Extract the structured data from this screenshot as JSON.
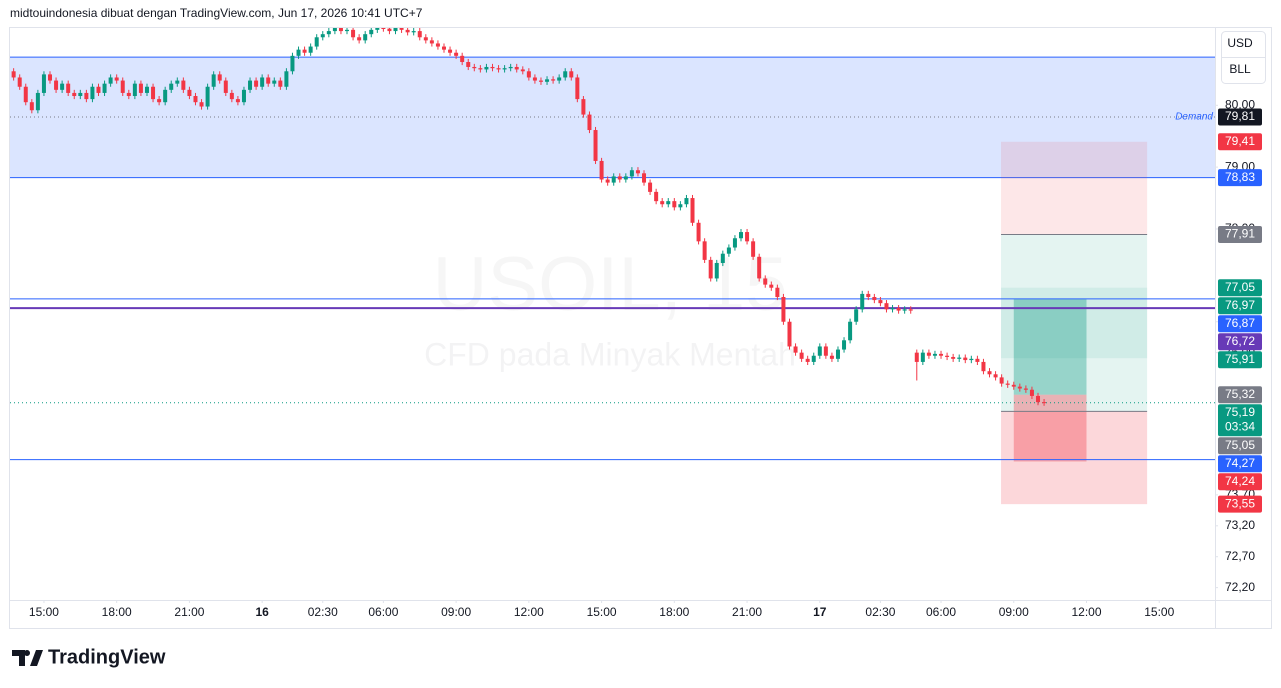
{
  "header": {
    "text": "midtouindonesia dibuat dengan TradingView.com, Jun 17, 2026 10:41 UTC+7"
  },
  "currency_buttons": [
    "USD",
    "BLL"
  ],
  "footer": {
    "brand": "TradingView"
  },
  "chart_data": {
    "type": "candlestick",
    "title": "USOIL, 15",
    "subtitle": "CFD pada Minyak Mentah",
    "up_color": "#089981",
    "down_color": "#f23645",
    "x": [
      -5,
      -4,
      -3,
      -2,
      -1,
      0,
      1,
      2,
      3,
      4,
      5,
      6,
      7,
      8,
      9,
      10,
      11,
      12,
      13,
      14,
      15,
      16,
      17,
      18,
      19,
      20,
      21,
      22,
      23,
      24,
      25,
      26,
      27,
      28,
      29,
      30,
      31,
      32,
      33,
      34,
      35,
      36,
      37,
      38,
      39,
      40,
      41,
      42,
      43,
      44,
      45,
      46,
      47,
      48,
      49,
      50,
      51,
      52,
      53,
      54,
      55,
      56,
      57,
      58,
      59,
      60,
      61,
      62,
      63,
      64,
      65,
      66,
      67,
      68,
      69,
      70,
      71,
      72,
      73,
      74,
      75,
      76,
      77,
      78,
      79,
      80,
      81,
      82,
      83,
      84,
      85,
      86,
      87,
      88,
      89,
      90,
      91,
      92,
      93,
      94,
      95,
      96,
      97,
      98,
      99,
      100,
      101,
      102,
      103,
      104,
      105,
      106,
      107,
      108,
      109,
      110,
      111,
      112,
      113,
      114,
      115,
      116,
      117,
      118,
      119,
      120,
      121,
      122,
      123,
      124,
      125,
      126,
      127,
      128,
      129,
      130,
      131,
      132,
      133,
      134,
      135,
      136,
      137,
      138,
      139,
      140,
      141,
      142,
      143,
      144,
      145,
      146,
      147,
      148,
      149,
      150,
      151,
      152,
      153,
      154,
      155,
      156,
      157,
      158,
      159,
      160,
      161,
      162,
      163,
      164,
      165
    ],
    "open": [
      80.55,
      80.45,
      80.3,
      80.05,
      79.92,
      80.2,
      80.5,
      80.4,
      80.25,
      80.35,
      80.2,
      80.15,
      80.2,
      80.1,
      80.3,
      80.2,
      80.35,
      80.45,
      80.4,
      80.2,
      80.15,
      80.35,
      80.2,
      80.3,
      80.1,
      80.05,
      80.25,
      80.35,
      80.4,
      80.25,
      80.15,
      80.05,
      79.98,
      80.3,
      80.5,
      80.4,
      80.2,
      80.1,
      80.05,
      80.25,
      80.4,
      80.3,
      80.45,
      80.35,
      80.4,
      80.3,
      80.55,
      80.8,
      80.9,
      80.85,
      80.95,
      81.1,
      81.15,
      81.2,
      81.25,
      81.2,
      81.22,
      81.1,
      81.05,
      81.15,
      81.22,
      81.25,
      81.24,
      81.2,
      81.25,
      81.22,
      81.18,
      81.2,
      81.1,
      81.05,
      81.0,
      80.95,
      80.9,
      80.85,
      80.8,
      80.7,
      80.62,
      80.6,
      80.58,
      80.62,
      80.6,
      80.58,
      80.6,
      80.62,
      80.58,
      80.55,
      80.45,
      80.4,
      80.38,
      80.42,
      80.4,
      80.45,
      80.55,
      80.45,
      80.1,
      79.85,
      79.6,
      79.1,
      78.8,
      78.75,
      78.85,
      78.8,
      78.85,
      78.95,
      78.9,
      78.75,
      78.6,
      78.45,
      78.4,
      78.45,
      78.35,
      78.4,
      78.5,
      78.1,
      77.8,
      77.5,
      77.2,
      77.45,
      77.6,
      77.7,
      77.85,
      77.95,
      77.8,
      77.55,
      77.2,
      77.1,
      77.05,
      76.9,
      76.5,
      76.1,
      76.0,
      75.9,
      75.85,
      75.95,
      76.1,
      75.95,
      75.9,
      76.05,
      76.2,
      76.5,
      76.7,
      76.95,
      76.9,
      76.85,
      76.8,
      76.7,
      76.72,
      76.68,
      76.7,
      76.0,
      75.85,
      76.0,
      75.95,
      75.98,
      75.95,
      75.93,
      75.9,
      75.92,
      75.88,
      75.9,
      75.85,
      75.7,
      75.65,
      75.6,
      75.5,
      75.48,
      75.45,
      75.42,
      75.4,
      75.3,
      75.2
    ],
    "high": [
      80.6,
      80.5,
      80.35,
      80.1,
      80.25,
      80.55,
      80.55,
      80.45,
      80.4,
      80.4,
      80.25,
      80.25,
      80.25,
      80.35,
      80.35,
      80.4,
      80.5,
      80.5,
      80.45,
      80.25,
      80.4,
      80.4,
      80.35,
      80.35,
      80.15,
      80.3,
      80.4,
      80.45,
      80.45,
      80.3,
      80.2,
      80.1,
      80.35,
      80.55,
      80.55,
      80.45,
      80.25,
      80.15,
      80.3,
      80.45,
      80.45,
      80.5,
      80.5,
      80.45,
      80.45,
      80.6,
      80.85,
      80.95,
      80.95,
      81.0,
      81.15,
      81.2,
      81.25,
      81.3,
      81.3,
      81.27,
      81.27,
      81.15,
      81.2,
      81.27,
      81.3,
      81.3,
      81.29,
      81.3,
      81.3,
      81.27,
      81.25,
      81.25,
      81.15,
      81.1,
      81.05,
      81.0,
      80.95,
      80.9,
      80.85,
      80.75,
      80.67,
      80.65,
      80.67,
      80.67,
      80.65,
      80.65,
      80.67,
      80.67,
      80.63,
      80.6,
      80.5,
      80.45,
      80.47,
      80.47,
      80.5,
      80.6,
      80.6,
      80.5,
      80.15,
      79.9,
      79.65,
      79.15,
      78.85,
      78.9,
      78.9,
      78.9,
      79.0,
      79.0,
      78.95,
      78.8,
      78.65,
      78.5,
      78.5,
      78.5,
      78.45,
      78.55,
      78.55,
      78.15,
      77.85,
      77.55,
      77.5,
      77.65,
      77.75,
      77.9,
      78.0,
      78.0,
      77.85,
      77.6,
      77.25,
      77.15,
      77.1,
      76.95,
      76.55,
      76.15,
      76.05,
      75.95,
      76.0,
      76.15,
      76.15,
      76.0,
      76.1,
      76.25,
      76.55,
      76.75,
      77.0,
      77.0,
      76.95,
      76.9,
      76.85,
      76.77,
      76.77,
      76.75,
      76.75,
      76.05,
      76.05,
      76.05,
      76.03,
      76.03,
      76.0,
      75.98,
      75.97,
      75.97,
      75.95,
      75.95,
      75.9,
      75.75,
      75.7,
      75.65,
      75.55,
      75.53,
      75.5,
      75.47,
      75.45,
      75.35,
      75.25
    ],
    "low": [
      80.4,
      80.25,
      80.0,
      79.87,
      79.87,
      80.15,
      80.35,
      80.2,
      80.2,
      80.15,
      80.1,
      80.1,
      80.05,
      80.05,
      80.15,
      80.15,
      80.3,
      80.35,
      80.15,
      80.1,
      80.1,
      80.15,
      80.15,
      80.05,
      80.0,
      80.0,
      80.2,
      80.3,
      80.2,
      80.1,
      80.0,
      79.93,
      79.93,
      80.25,
      80.35,
      80.15,
      80.05,
      80.0,
      80.0,
      80.2,
      80.25,
      80.25,
      80.3,
      80.3,
      80.25,
      80.25,
      80.5,
      80.75,
      80.8,
      80.8,
      80.9,
      81.05,
      81.1,
      81.15,
      81.15,
      81.15,
      81.05,
      81.0,
      81.0,
      81.1,
      81.17,
      81.19,
      81.15,
      81.15,
      81.17,
      81.13,
      81.13,
      81.05,
      81.0,
      80.95,
      80.9,
      80.85,
      80.8,
      80.75,
      80.65,
      80.57,
      80.55,
      80.53,
      80.53,
      80.55,
      80.53,
      80.53,
      80.55,
      80.53,
      80.5,
      80.4,
      80.35,
      80.33,
      80.33,
      80.35,
      80.35,
      80.4,
      80.4,
      80.05,
      79.8,
      79.55,
      79.05,
      78.75,
      78.7,
      78.7,
      78.75,
      78.75,
      78.8,
      78.85,
      78.7,
      78.55,
      78.4,
      78.35,
      78.35,
      78.3,
      78.3,
      78.35,
      78.05,
      77.75,
      77.45,
      77.15,
      77.15,
      77.4,
      77.55,
      77.65,
      77.8,
      77.75,
      77.5,
      77.15,
      77.05,
      77.0,
      76.85,
      76.45,
      76.05,
      75.95,
      75.85,
      75.8,
      75.8,
      75.9,
      75.9,
      75.85,
      75.85,
      76.0,
      76.15,
      76.45,
      76.65,
      76.85,
      76.8,
      76.75,
      76.65,
      76.65,
      76.63,
      76.63,
      76.63,
      75.55,
      75.8,
      75.9,
      75.9,
      75.9,
      75.88,
      75.85,
      75.85,
      75.83,
      75.83,
      75.8,
      75.65,
      75.6,
      75.55,
      75.45,
      75.43,
      75.4,
      75.37,
      75.35,
      75.25,
      75.15,
      75.14
    ],
    "close": [
      80.45,
      80.3,
      80.05,
      79.92,
      80.2,
      80.5,
      80.4,
      80.25,
      80.35,
      80.2,
      80.15,
      80.2,
      80.1,
      80.3,
      80.2,
      80.35,
      80.45,
      80.4,
      80.2,
      80.15,
      80.35,
      80.2,
      80.3,
      80.1,
      80.05,
      80.25,
      80.35,
      80.4,
      80.25,
      80.15,
      80.05,
      79.98,
      80.3,
      80.5,
      80.4,
      80.2,
      80.1,
      80.05,
      80.25,
      80.4,
      80.3,
      80.45,
      80.35,
      80.4,
      80.3,
      80.55,
      80.8,
      80.9,
      80.85,
      80.95,
      81.1,
      81.15,
      81.2,
      81.25,
      81.2,
      81.22,
      81.1,
      81.05,
      81.15,
      81.22,
      81.25,
      81.24,
      81.2,
      81.25,
      81.22,
      81.18,
      81.2,
      81.1,
      81.05,
      81.0,
      80.95,
      80.9,
      80.85,
      80.8,
      80.7,
      80.62,
      80.6,
      80.58,
      80.62,
      80.6,
      80.58,
      80.6,
      80.62,
      80.58,
      80.55,
      80.45,
      80.4,
      80.38,
      80.42,
      80.4,
      80.45,
      80.55,
      80.45,
      80.1,
      79.85,
      79.6,
      79.1,
      78.8,
      78.75,
      78.85,
      78.8,
      78.85,
      78.95,
      78.9,
      78.75,
      78.6,
      78.45,
      78.4,
      78.45,
      78.35,
      78.4,
      78.5,
      78.1,
      77.8,
      77.5,
      77.2,
      77.45,
      77.6,
      77.7,
      77.85,
      77.95,
      77.8,
      77.55,
      77.2,
      77.1,
      77.05,
      76.9,
      76.5,
      76.1,
      76.0,
      75.9,
      75.85,
      75.95,
      76.1,
      75.95,
      75.9,
      76.05,
      76.2,
      76.5,
      76.7,
      76.95,
      76.9,
      76.85,
      76.8,
      76.7,
      76.72,
      76.68,
      76.7,
      76.68,
      75.85,
      76.0,
      75.95,
      75.98,
      75.95,
      75.93,
      75.9,
      75.92,
      75.88,
      75.9,
      75.85,
      75.7,
      75.65,
      75.6,
      75.5,
      75.48,
      75.45,
      75.42,
      75.4,
      75.3,
      75.2,
      75.19
    ],
    "xlim": [
      -5.6,
      193.2
    ],
    "xticks": [
      {
        "value": 0,
        "label": "15:00"
      },
      {
        "value": 12,
        "label": "18:00"
      },
      {
        "value": 24,
        "label": "21:00"
      },
      {
        "value": 36,
        "label": "16",
        "bold": true
      },
      {
        "value": 46,
        "label": "02:30"
      },
      {
        "value": 56,
        "label": "06:00"
      },
      {
        "value": 68,
        "label": "09:00"
      },
      {
        "value": 80,
        "label": "12:00"
      },
      {
        "value": 92,
        "label": "15:00"
      },
      {
        "value": 104,
        "label": "18:00"
      },
      {
        "value": 116,
        "label": "21:00"
      },
      {
        "value": 128,
        "label": "17",
        "bold": true
      },
      {
        "value": 138,
        "label": "02:30"
      },
      {
        "value": 148,
        "label": "06:00"
      },
      {
        "value": 160,
        "label": "09:00"
      },
      {
        "value": 172,
        "label": "12:00"
      },
      {
        "value": 184,
        "label": "15:00"
      }
    ],
    "ylim": [
      72.0,
      81.25
    ],
    "yticks": [
      {
        "value": 80,
        "label": "80,00"
      },
      {
        "value": 79,
        "label": "79,00"
      },
      {
        "value": 78,
        "label": "78,00"
      },
      {
        "value": 76.5,
        "label": "76,50"
      },
      {
        "value": 76,
        "label": "76,00"
      },
      {
        "value": 73.7,
        "label": "73,70"
      },
      {
        "value": 73.2,
        "label": "73,20"
      },
      {
        "value": 72.7,
        "label": "72,70"
      },
      {
        "value": 72.2,
        "label": "72,20"
      }
    ],
    "grid": false,
    "zones": [
      {
        "name": "Demand",
        "from": 78.83,
        "to": 80.78,
        "midline": 79.81,
        "color": "rgba(41,98,255,0.17)",
        "line_color": "#2962ff",
        "label_color": "#2962ff"
      }
    ],
    "positions": [
      {
        "from": 79.41,
        "to": 77.91,
        "x_from": 157.9,
        "x_to": 182,
        "color": "rgba(242,54,69,0.12)"
      },
      {
        "from": 77.91,
        "to": 75.05,
        "x_from": 157.9,
        "x_to": 182,
        "color": "rgba(8,153,129,0.11)"
      },
      {
        "from": 77.05,
        "to": 75.91,
        "x_from": 157.9,
        "x_to": 182,
        "color": "rgba(8,153,129,0.09)"
      },
      {
        "from": 75.05,
        "to": 73.55,
        "x_from": 157.9,
        "x_to": 182,
        "color": "rgba(242,54,69,0.2)"
      },
      {
        "from": 76.87,
        "to": 75.32,
        "x_from": 160,
        "x_to": 172,
        "color": "rgba(8,153,129,0.35)"
      },
      {
        "from": 75.32,
        "to": 74.24,
        "x_from": 160,
        "x_to": 172,
        "color": "rgba(242,54,69,0.35)"
      }
    ],
    "hlines": [
      {
        "value": 76.87,
        "color": "#2962ff",
        "width": 1
      },
      {
        "value": 76.72,
        "color": "#673ab7",
        "width": 2
      },
      {
        "value": 74.27,
        "color": "#2962ff",
        "width": 1
      },
      {
        "value": 75.19,
        "color": "#089981",
        "width": 1,
        "dashed": true
      },
      {
        "value": 77.91,
        "color": "#787b86",
        "width": 1,
        "x_from": 157.9,
        "x_to": 182
      },
      {
        "value": 75.05,
        "color": "#787b86",
        "width": 1,
        "x_from": 157.9,
        "x_to": 182
      }
    ],
    "price_labels": [
      {
        "value": 79.81,
        "label": "79,81",
        "color": "#131722"
      },
      {
        "value": 79.41,
        "label": "79,41",
        "color": "#f23645"
      },
      {
        "value": 78.83,
        "label": "78,83",
        "color": "#2962ff"
      },
      {
        "value": 77.91,
        "label": "77,91",
        "color": "#787b86"
      },
      {
        "value": 77.05,
        "label": "77,05",
        "color": "#089981"
      },
      {
        "value": 76.97,
        "label": "76,97",
        "color": "#089981"
      },
      {
        "value": 76.87,
        "label": "76,87",
        "color": "#2962ff"
      },
      {
        "value": 76.72,
        "label": "76,72",
        "color": "#673ab7"
      },
      {
        "value": 75.91,
        "label": "75,91",
        "color": "#089981"
      },
      {
        "value": 75.32,
        "label": "75,32",
        "color": "#787b86"
      },
      {
        "value": 75.19,
        "label": "75,19",
        "color": "#089981",
        "countdown": "03:34"
      },
      {
        "value": 75.05,
        "label": "75,05",
        "color": "#787b86"
      },
      {
        "value": 74.27,
        "label": "74,27",
        "color": "#2962ff"
      },
      {
        "value": 74.24,
        "label": "74,24",
        "color": "#f23645"
      },
      {
        "value": 73.55,
        "label": "73,55",
        "color": "#f23645"
      }
    ]
  }
}
